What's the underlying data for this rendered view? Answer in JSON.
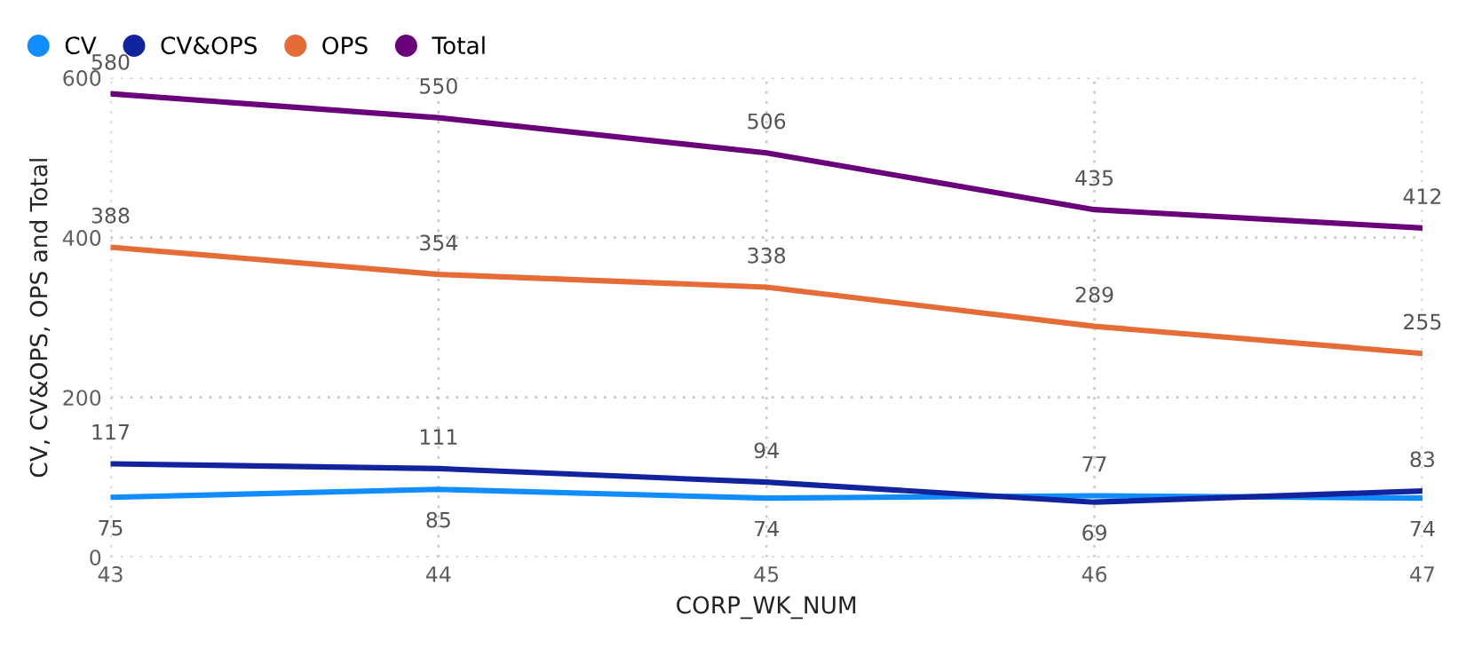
{
  "chart_data": {
    "type": "line",
    "xlabel": "CORP_WK_NUM",
    "ylabel": "CV, CV&OPS, OPS and Total",
    "x": [
      43,
      44,
      45,
      46,
      47
    ],
    "xlim": [
      43,
      47
    ],
    "xticks": [
      43,
      44,
      45,
      46,
      47
    ],
    "ylim": [
      0,
      600
    ],
    "yticks": [
      0,
      200,
      400,
      600
    ],
    "series": [
      {
        "name": "CV",
        "color": "#118dff",
        "values": [
          75,
          85,
          74,
          77,
          74
        ]
      },
      {
        "name": "CV&OPS",
        "color": "#12239e",
        "values": [
          117,
          111,
          94,
          69,
          83
        ]
      },
      {
        "name": "OPS",
        "color": "#e66c37",
        "values": [
          388,
          354,
          338,
          289,
          255
        ]
      },
      {
        "name": "Total",
        "color": "#6b007b",
        "values": [
          580,
          550,
          506,
          435,
          412
        ]
      }
    ],
    "data_labels": true,
    "grid": true,
    "legend": "top left",
    "marker": "none",
    "line_style": "solid"
  }
}
